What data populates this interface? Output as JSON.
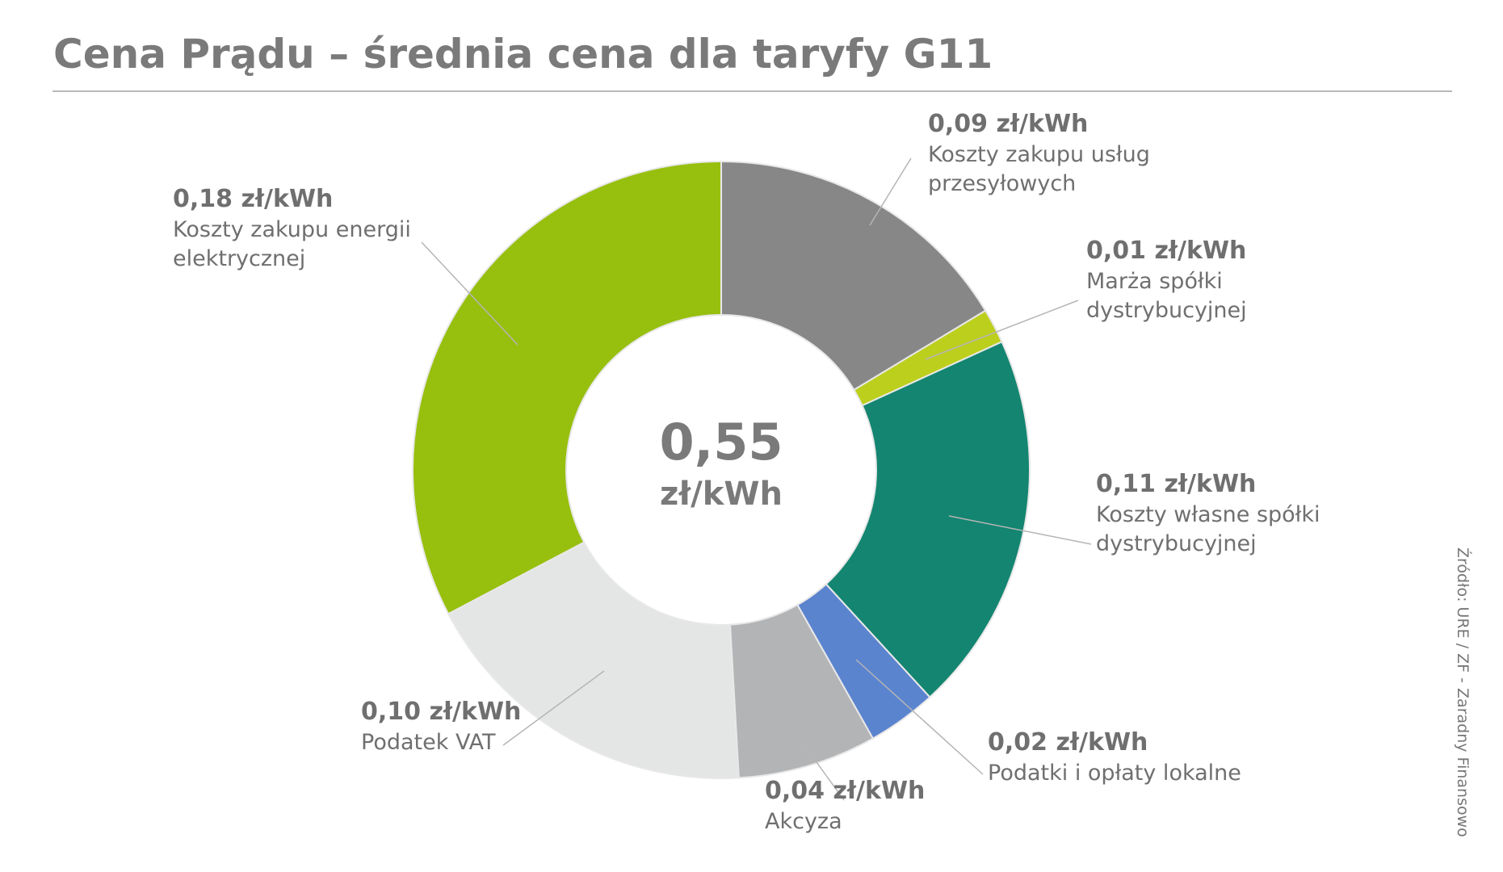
{
  "chart_data": {
    "type": "pie",
    "title": "Cena Prądu – średnia cena dla taryfy G11",
    "categories": [
      "Koszty zakupu usług przesyłowych",
      "Marża spółki dystrybucyjnej",
      "Koszty własne spółki dystrybucyjnej",
      "Podatki i opłaty lokalne",
      "Akcyza",
      "Podatek VAT",
      "Koszty zakupu energii elektrycznej"
    ],
    "values": [
      0.09,
      0.01,
      0.11,
      0.02,
      0.04,
      0.1,
      0.18
    ],
    "value_labels": [
      "0,09 zł/kWh",
      "0,01 zł/kWh",
      "0,11 zł/kWh",
      "0,02 zł/kWh",
      "0,04 zł/kWh",
      "0,10 zł/kWh",
      "0,18 zł/kWh"
    ],
    "colors": [
      "#878787",
      "#bccf1c",
      "#138570",
      "#5b84cf",
      "#b3b4b6",
      "#e4e5e5",
      "#97bf0d"
    ],
    "donut": true,
    "total": {
      "value": 0.55,
      "label": "0,55"
    },
    "total_unit": "zł/kWh",
    "source": "Źródło: URE / ZF - Zaradny Finansowo"
  }
}
